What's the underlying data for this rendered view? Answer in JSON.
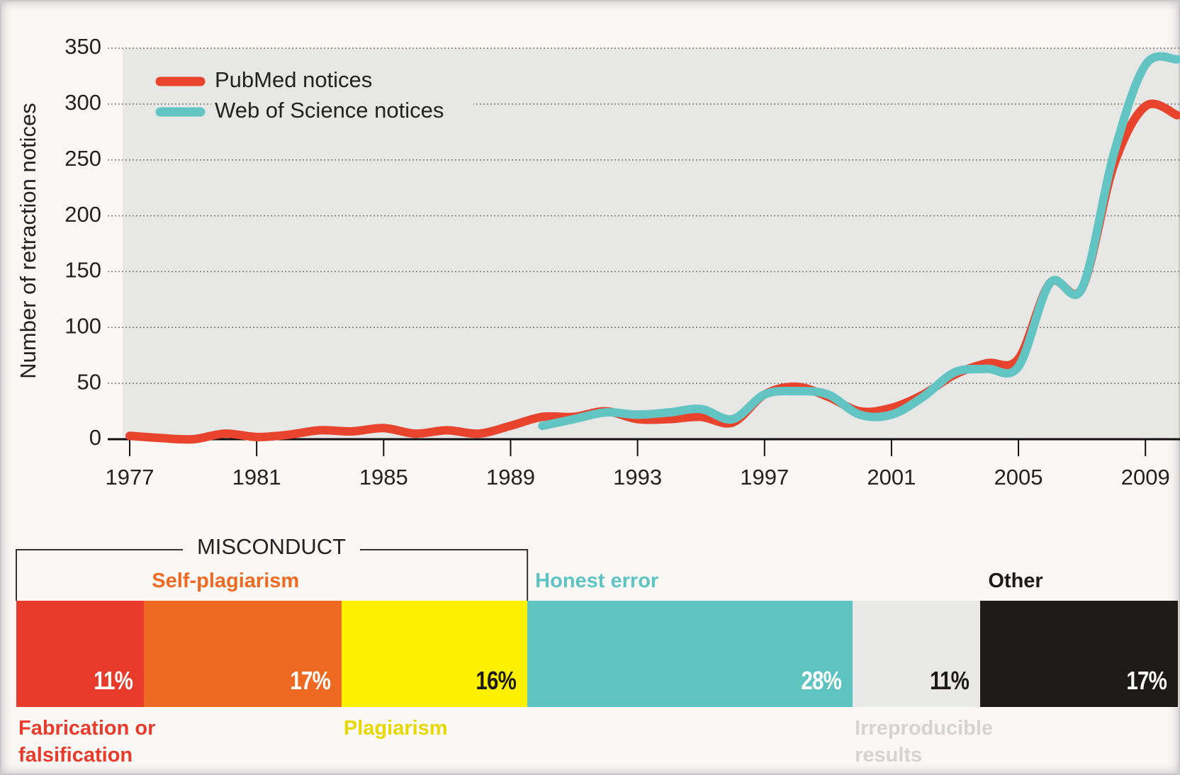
{
  "chart_data": [
    {
      "type": "line",
      "y_label": "Number of retraction notices",
      "x": [
        1977,
        1978,
        1979,
        1980,
        1981,
        1982,
        1983,
        1984,
        1985,
        1986,
        1987,
        1988,
        1989,
        1990,
        1991,
        1992,
        1993,
        1994,
        1995,
        1996,
        1997,
        1998,
        1999,
        2000,
        2001,
        2002,
        2003,
        2004,
        2005,
        2006,
        2007,
        2008,
        2009,
        2010
      ],
      "series": [
        {
          "name": "PubMed notices",
          "color": "#e8432d",
          "values": [
            3,
            1,
            0,
            5,
            2,
            4,
            8,
            7,
            10,
            5,
            8,
            5,
            12,
            20,
            20,
            25,
            18,
            18,
            20,
            15,
            40,
            47,
            38,
            25,
            28,
            40,
            58,
            68,
            72,
            140,
            135,
            245,
            298,
            290
          ]
        },
        {
          "name": "Web of Science notices",
          "color": "#62c4c3",
          "values": [
            null,
            null,
            null,
            null,
            null,
            null,
            null,
            null,
            null,
            null,
            null,
            null,
            null,
            12,
            18,
            24,
            22,
            24,
            27,
            18,
            40,
            43,
            40,
            22,
            22,
            38,
            60,
            63,
            65,
            140,
            135,
            255,
            335,
            340
          ]
        }
      ],
      "xlim": [
        1977,
        2010
      ],
      "xticks": [
        1977,
        1981,
        1985,
        1989,
        1993,
        1997,
        2001,
        2005,
        2009
      ],
      "ylim": [
        0,
        350
      ],
      "yticks": [
        0,
        50,
        100,
        150,
        200,
        250,
        300,
        350
      ],
      "grid": true,
      "legend": "top-left"
    },
    {
      "type": "stacked-bar",
      "group_label": "MISCONDUCT",
      "categories": [
        "Fabrication or falsification",
        "Self-plagiarism",
        "Plagiarism",
        "Honest error",
        "Irreproducible results",
        "Other"
      ],
      "values": [
        11,
        17,
        16,
        28,
        11,
        17
      ],
      "value_labels": [
        "11%",
        "17%",
        "16%",
        "28%",
        "11%",
        "17%"
      ],
      "colors": [
        "#e83b2b",
        "#ee6a22",
        "#fdf000",
        "#5ec4c1",
        "#e9e9e7",
        "#1d1a1a"
      ],
      "label_colors": [
        "#e83b2b",
        "#ee6a22",
        "#e6d800",
        "#5ec4c1",
        "#d4d4d2",
        "#1d1a1a"
      ]
    }
  ]
}
